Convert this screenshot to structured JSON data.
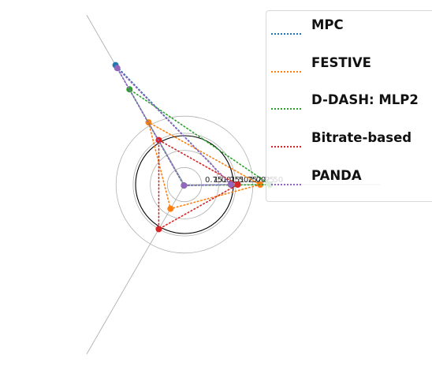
{
  "chart_data": {
    "type": "radar",
    "axes": [
      "",
      "",
      ""
    ],
    "radial_ticks": [
      "0.75",
      "1.00",
      "1.25",
      "1.50",
      "1.75",
      "2.00",
      "2.25",
      "2.50"
    ],
    "reference_ring": 1.0,
    "series": [
      {
        "name": "MPC",
        "color": "#1f77b4",
        "values": [
          0.95,
          2.82,
          0.02
        ]
      },
      {
        "name": "FESTIVE",
        "color": "#ff7f0e",
        "values": [
          1.55,
          1.47,
          0.57
        ]
      },
      {
        "name": "D-DASH: MLP2",
        "color": "#2ca02c",
        "values": [
          1.75,
          2.25,
          0.02
        ]
      },
      {
        "name": "Bitrate-based",
        "color": "#d62728",
        "values": [
          1.09,
          1.05,
          1.05
        ]
      },
      {
        "name": "PANDA",
        "color": "#9467bd",
        "values": [
          0.95,
          2.75,
          0.02
        ]
      }
    ]
  },
  "legend": {
    "entries": [
      "MPC",
      "FESTIVE",
      "D-DASH: MLP2",
      "Bitrate-based",
      "PANDA"
    ]
  }
}
